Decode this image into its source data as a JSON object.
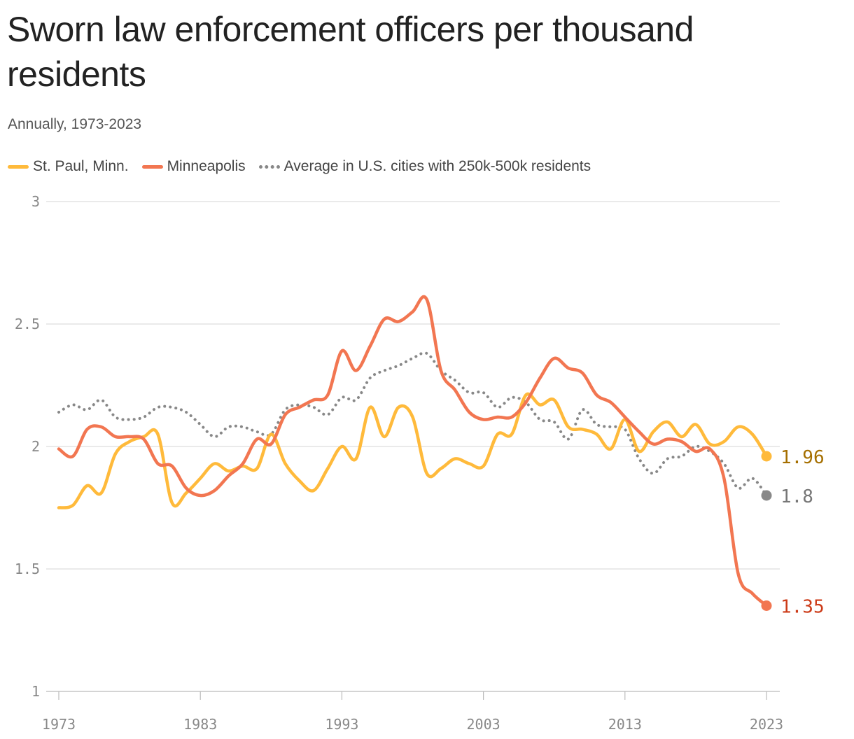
{
  "chart_data": {
    "type": "line",
    "title": "Sworn law enforcement officers per thousand residents",
    "subtitle": "Annually, 1973-2023",
    "xlabel": "",
    "ylabel": "",
    "xlim": [
      1973,
      2023
    ],
    "ylim": [
      1,
      3
    ],
    "x_ticks": [
      1973,
      1983,
      1993,
      2003,
      2013,
      2023
    ],
    "y_ticks": [
      1,
      1.5,
      2,
      2.5,
      3
    ],
    "y_tick_labels": [
      "1",
      "1.5",
      "2",
      "2.5",
      "3"
    ],
    "grid": true,
    "legend_position": "top-left",
    "x": [
      1973,
      1974,
      1975,
      1976,
      1977,
      1978,
      1979,
      1980,
      1981,
      1982,
      1983,
      1984,
      1985,
      1986,
      1987,
      1988,
      1989,
      1990,
      1991,
      1992,
      1993,
      1994,
      1995,
      1996,
      1997,
      1998,
      1999,
      2000,
      2001,
      2002,
      2003,
      2004,
      2005,
      2006,
      2007,
      2008,
      2009,
      2010,
      2011,
      2012,
      2013,
      2014,
      2015,
      2016,
      2017,
      2018,
      2019,
      2020,
      2021,
      2022,
      2023
    ],
    "series": [
      {
        "name": "St. Paul, Minn.",
        "color": "#FFBA3B",
        "style": "solid",
        "end_label": "1.96",
        "label_color": "#A56F00",
        "values": [
          1.75,
          1.76,
          1.84,
          1.81,
          1.97,
          2.02,
          2.04,
          2.05,
          1.77,
          1.81,
          1.87,
          1.93,
          1.9,
          1.92,
          1.91,
          2.05,
          1.93,
          1.86,
          1.82,
          1.91,
          2.0,
          1.95,
          2.16,
          2.04,
          2.16,
          2.12,
          1.89,
          1.91,
          1.95,
          1.93,
          1.92,
          2.05,
          2.05,
          2.21,
          2.17,
          2.19,
          2.08,
          2.07,
          2.05,
          1.99,
          2.11,
          1.98,
          2.06,
          2.1,
          2.04,
          2.09,
          2.01,
          2.02,
          2.08,
          2.05,
          1.96
        ]
      },
      {
        "name": "Minneapolis",
        "color": "#F27651",
        "style": "solid",
        "end_label": "1.35",
        "label_color": "#CC3B18",
        "values": [
          1.99,
          1.96,
          2.07,
          2.08,
          2.04,
          2.04,
          2.03,
          1.93,
          1.92,
          1.83,
          1.8,
          1.82,
          1.88,
          1.93,
          2.03,
          2.01,
          2.13,
          2.16,
          2.19,
          2.21,
          2.39,
          2.31,
          2.41,
          2.52,
          2.51,
          2.55,
          2.6,
          2.31,
          2.23,
          2.14,
          2.11,
          2.12,
          2.12,
          2.18,
          2.28,
          2.36,
          2.32,
          2.3,
          2.21,
          2.18,
          2.12,
          2.06,
          2.01,
          2.03,
          2.02,
          1.98,
          1.99,
          1.87,
          1.48,
          1.4,
          1.35
        ]
      },
      {
        "name": "Average in U.S. cities with 250k-500k residents",
        "color": "#888888",
        "style": "dotted",
        "end_label": "1.8",
        "label_color": "#777777",
        "values": [
          2.14,
          2.17,
          2.15,
          2.19,
          2.12,
          2.11,
          2.12,
          2.16,
          2.16,
          2.14,
          2.09,
          2.04,
          2.08,
          2.08,
          2.06,
          2.05,
          2.15,
          2.17,
          2.16,
          2.13,
          2.2,
          2.19,
          2.28,
          2.31,
          2.33,
          2.36,
          2.38,
          2.31,
          2.27,
          2.22,
          2.22,
          2.16,
          2.2,
          2.18,
          2.11,
          2.1,
          2.03,
          2.15,
          2.09,
          2.08,
          2.07,
          1.95,
          1.89,
          1.95,
          1.96,
          2.0,
          1.98,
          1.93,
          1.83,
          1.87,
          1.8
        ]
      }
    ]
  }
}
